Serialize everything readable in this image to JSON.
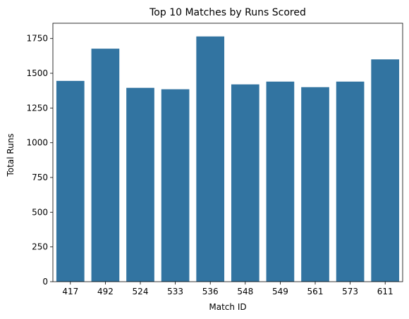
{
  "chart_data": {
    "type": "bar",
    "title": "Top 10 Matches by Runs Scored",
    "xlabel": "Match ID",
    "ylabel": "Total Runs",
    "categories": [
      "417",
      "492",
      "524",
      "533",
      "536",
      "548",
      "549",
      "561",
      "573",
      "611"
    ],
    "values": [
      1445,
      1677,
      1395,
      1385,
      1765,
      1420,
      1440,
      1400,
      1440,
      1600
    ],
    "ylim": [
      0,
      1860
    ],
    "yticks": [
      0,
      250,
      500,
      750,
      1000,
      1250,
      1500,
      1750
    ],
    "bar_color": "#3274a1",
    "grid": false,
    "legend": "none"
  }
}
